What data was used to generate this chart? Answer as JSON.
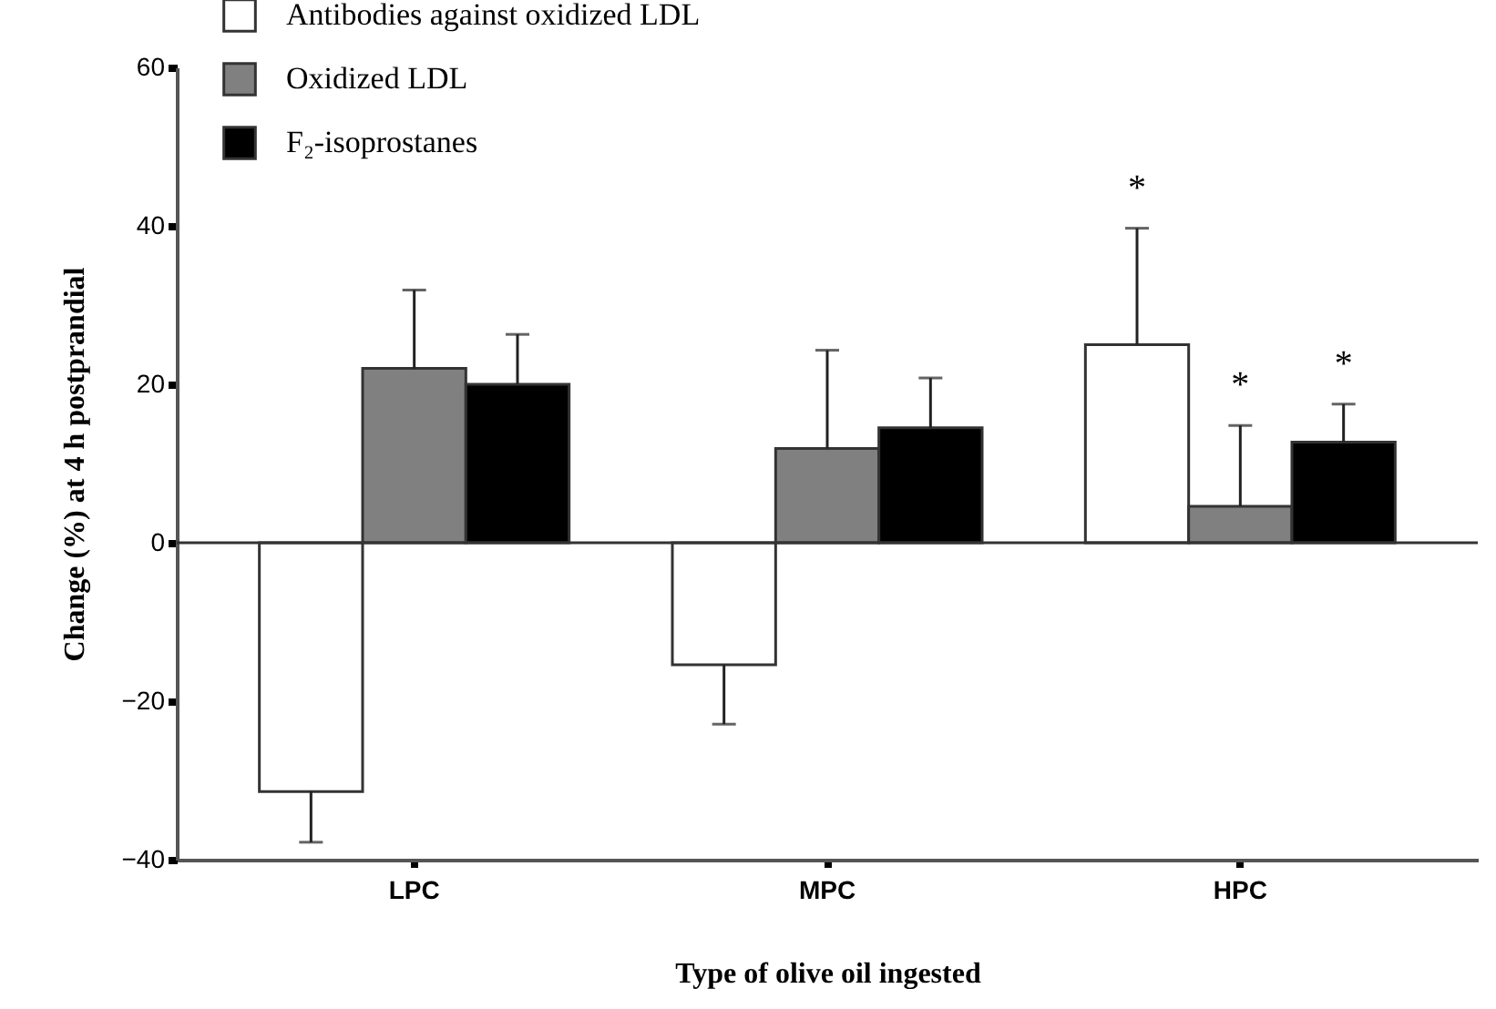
{
  "chart_data": {
    "type": "bar",
    "xlabel": "Type of olive oil ingested",
    "ylabel": "Change (%) at 4 h postprandial",
    "categories": [
      "LPC",
      "MPC",
      "HPC"
    ],
    "series": [
      {
        "name": "Antibodies against oxidized LDL",
        "color": "#ffffff",
        "values": [
          -31.4,
          -15.4,
          25
        ],
        "errors": [
          [
            -37.8,
            -31.4
          ],
          [
            -22.9,
            -15.4
          ],
          [
            25,
            39.7
          ]
        ]
      },
      {
        "name": "Oxidized LDL",
        "color": "#808080",
        "values": [
          22,
          11.9,
          4.6
        ],
        "errors": [
          [
            22,
            31.9
          ],
          [
            11.9,
            24.3
          ],
          [
            4.6,
            14.8
          ]
        ]
      },
      {
        "name": "F₂-isoprostanes",
        "color": "#000000",
        "values": [
          20,
          14.5,
          12.7
        ],
        "errors": [
          [
            20,
            26.3
          ],
          [
            14.5,
            20.8
          ],
          [
            12.7,
            17.5
          ]
        ]
      }
    ],
    "annotations": [
      "*",
      "*",
      "*"
    ],
    "ylim": [
      -40,
      60
    ],
    "yticks": [
      -40,
      -20,
      0,
      20,
      40,
      60
    ],
    "ref_lines": [
      {
        "axis": "y",
        "value": 0
      }
    ],
    "legend": "top left",
    "grid": false
  }
}
